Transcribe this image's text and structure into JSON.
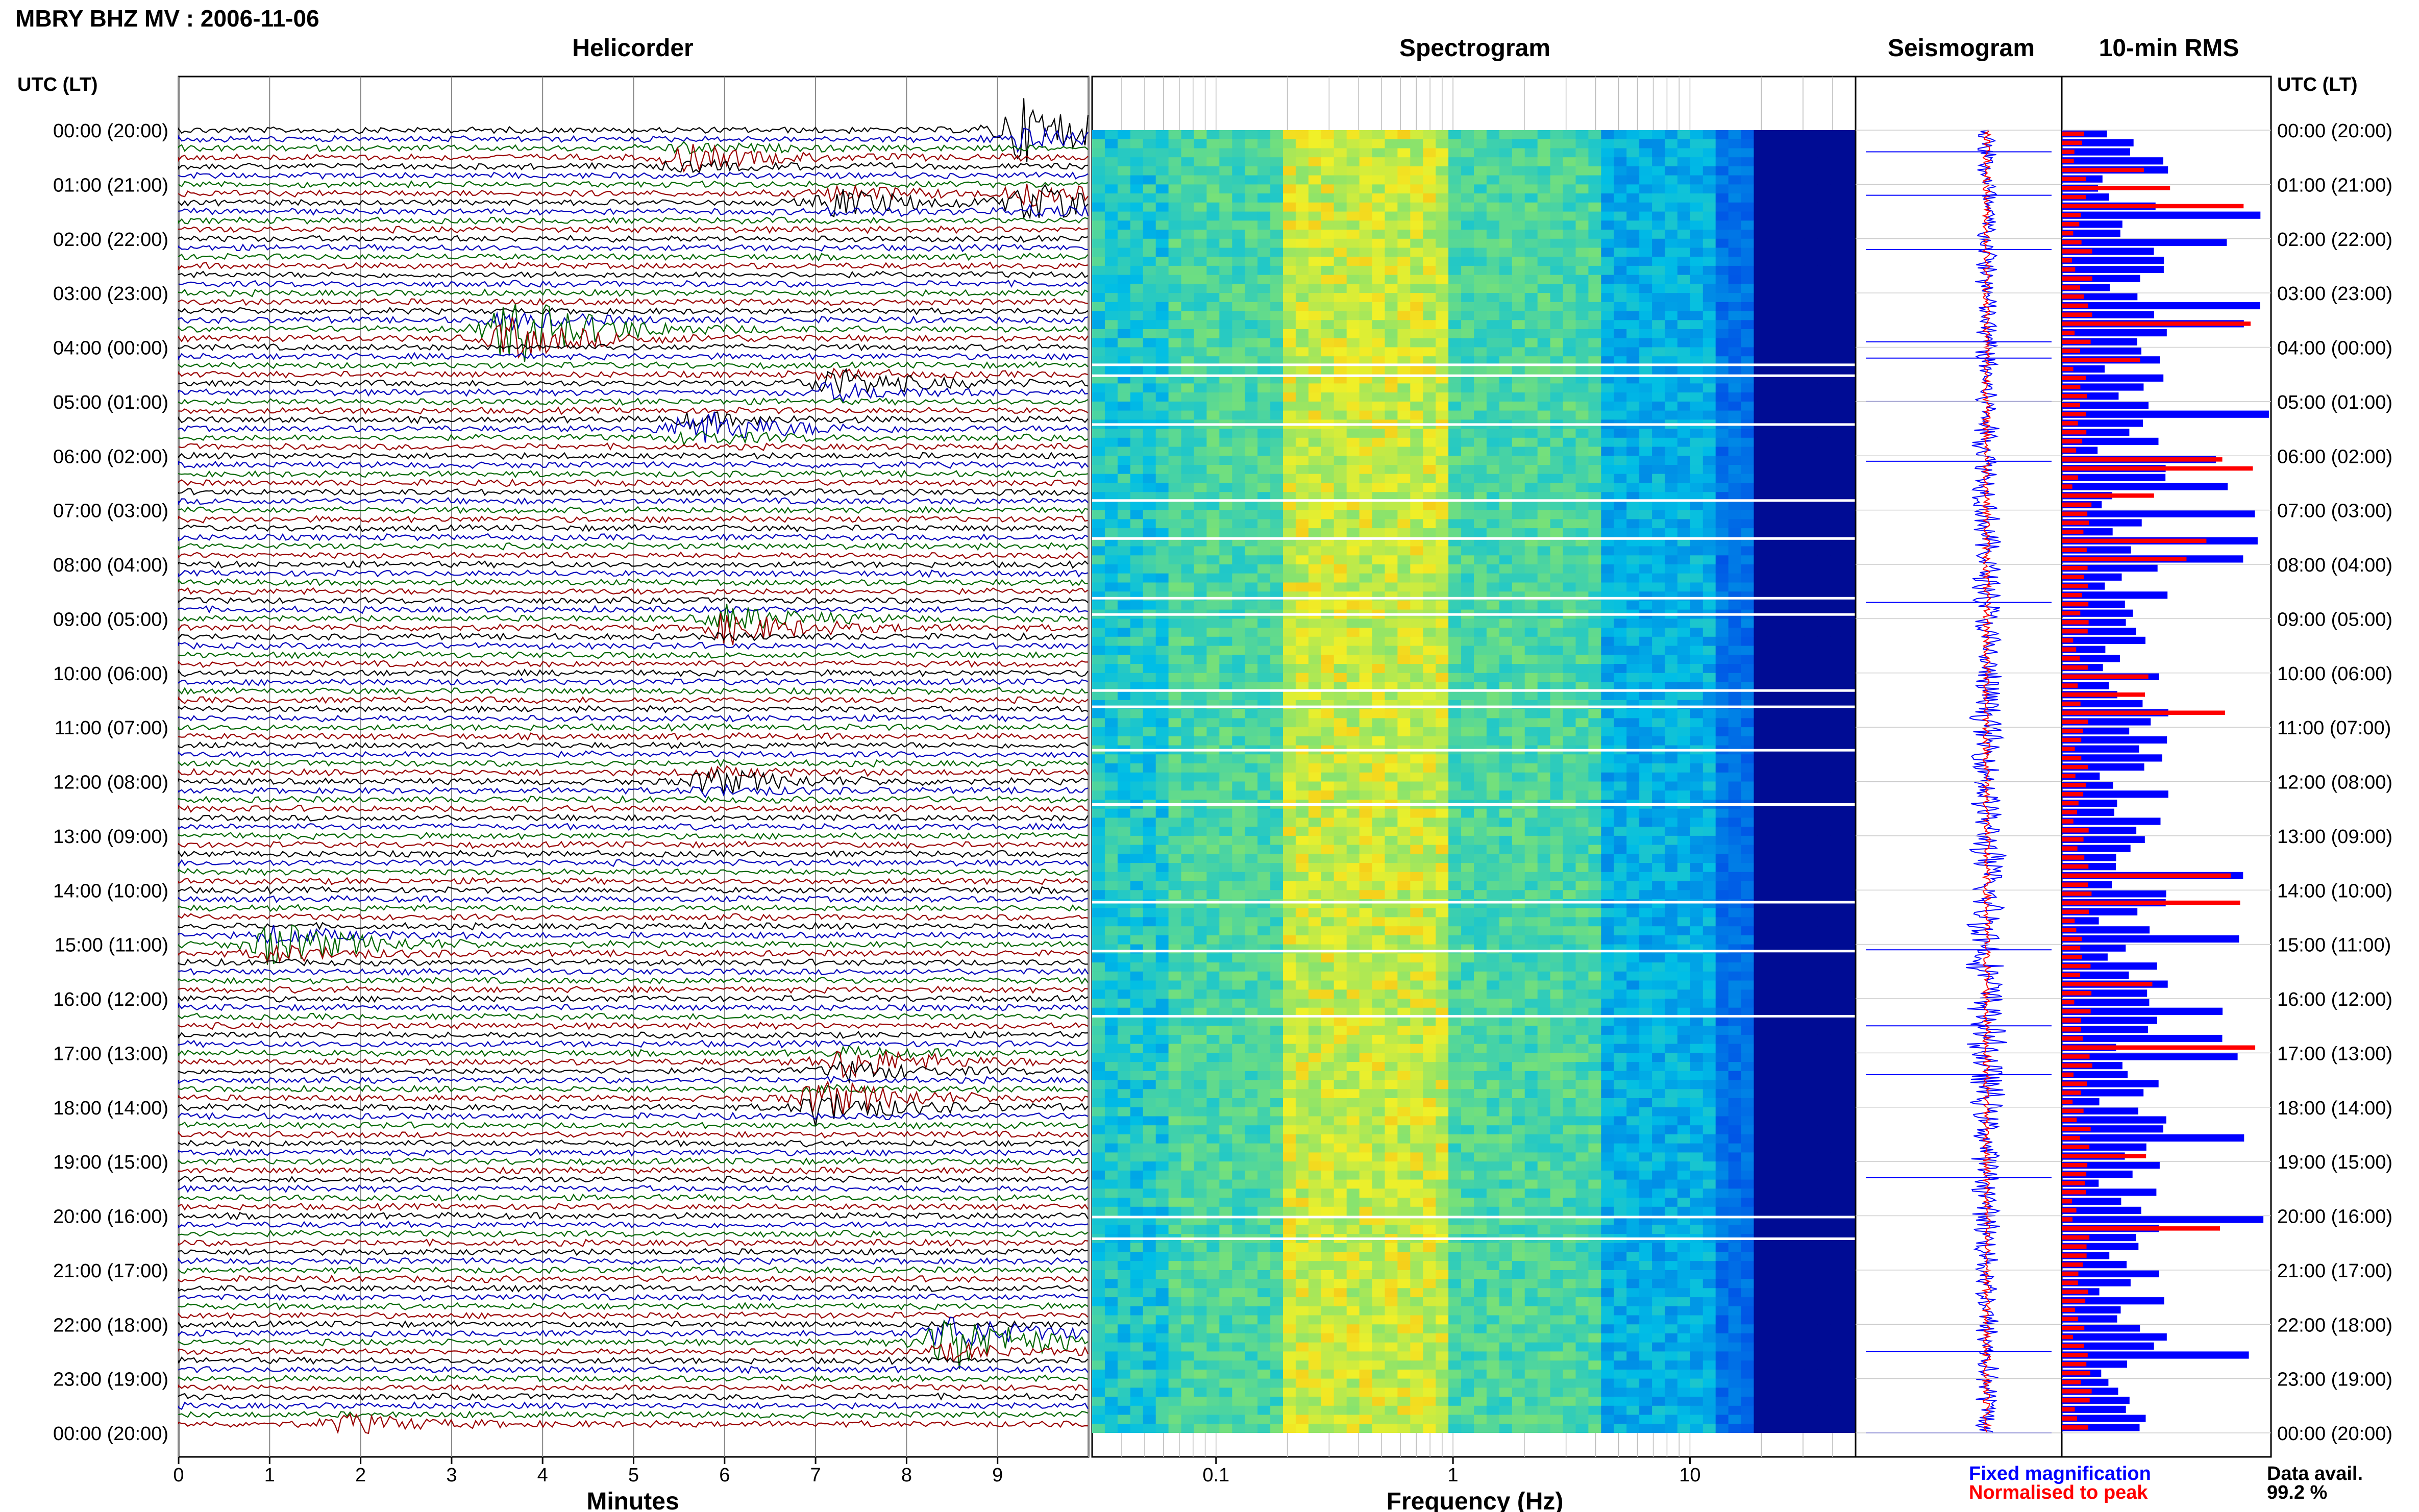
{
  "header": {
    "title": "MBRY BHZ MV : 2006-11-06",
    "utc_label": "UTC (LT)"
  },
  "panels": {
    "helicorder": "Helicorder",
    "spectrogram": "Spectrogram",
    "seismogram": "Seismogram",
    "rms": "10-min RMS"
  },
  "axes": {
    "minutes_label": "Minutes",
    "frequency_label": "Frequency (Hz)",
    "minutes_ticks": [
      "0",
      "1",
      "2",
      "3",
      "4",
      "5",
      "6",
      "7",
      "8",
      "9"
    ],
    "frequency_ticks": [
      "0.1",
      "1",
      "10"
    ]
  },
  "time_labels": [
    "00:00 (20:00)",
    "01:00 (21:00)",
    "02:00 (22:00)",
    "03:00 (23:00)",
    "04:00 (00:00)",
    "05:00 (01:00)",
    "06:00 (02:00)",
    "07:00 (03:00)",
    "08:00 (04:00)",
    "09:00 (05:00)",
    "10:00 (06:00)",
    "11:00 (07:00)",
    "12:00 (08:00)",
    "13:00 (09:00)",
    "14:00 (10:00)",
    "15:00 (11:00)",
    "16:00 (12:00)",
    "17:00 (13:00)",
    "18:00 (14:00)",
    "19:00 (15:00)",
    "20:00 (16:00)",
    "21:00 (17:00)",
    "22:00 (18:00)",
    "23:00 (19:00)",
    "00:00 (20:00)"
  ],
  "legend": {
    "fixed": "Fixed magnification",
    "normalised": "Normalised to peak",
    "data_avail_label": "Data avail.",
    "data_avail_value": "99.2 %"
  },
  "colors": {
    "trace_cycle": [
      "#000000",
      "#0000bb",
      "#006600",
      "#990000"
    ],
    "rms_fixed": "#0000ff",
    "rms_normalised": "#ff0000",
    "spectrogram_low": "#000080",
    "spectrogram_high": "#ffff00"
  },
  "chart_data": [
    {
      "type": "helicorder",
      "title": "Helicorder",
      "xlabel": "Minutes",
      "xlim": [
        0,
        10
      ],
      "rows_per_hour": 6,
      "hours": 24,
      "events": [
        {
          "hour_row": 0.0,
          "minute": 9.2,
          "amp": 3.0,
          "color": "#990000"
        },
        {
          "hour_row": 0.5,
          "minute": 5.5,
          "amp": 1.2,
          "color": "#006600"
        },
        {
          "hour_row": 1.3,
          "minute": 7.2,
          "amp": 1.5,
          "color": "#990000"
        },
        {
          "hour_row": 1.3,
          "minute": 9.3,
          "amp": 2.0,
          "color": "#0000bb"
        },
        {
          "hour_row": 3.7,
          "minute": 3.6,
          "amp": 4.0,
          "color": "#000000"
        },
        {
          "hour_row": 4.7,
          "minute": 7.1,
          "amp": 1.6,
          "color": "#990000"
        },
        {
          "hour_row": 5.5,
          "minute": 5.6,
          "amp": 1.8,
          "color": "#0000bb"
        },
        {
          "hour_row": 9.1,
          "minute": 6.0,
          "amp": 2.0,
          "color": "#990000"
        },
        {
          "hour_row": 12.0,
          "minute": 5.8,
          "amp": 1.2,
          "color": "#0000bb"
        },
        {
          "hour_row": 15.0,
          "minute": 1.0,
          "amp": 2.2,
          "color": "#000000"
        },
        {
          "hour_row": 17.2,
          "minute": 7.3,
          "amp": 1.8,
          "color": "#000000"
        },
        {
          "hour_row": 17.9,
          "minute": 7.0,
          "amp": 2.5,
          "color": "#990000"
        },
        {
          "hour_row": 22.3,
          "minute": 8.4,
          "amp": 3.5,
          "color": "#0000bb"
        },
        {
          "hour_row": 24.0,
          "minute": 1.8,
          "amp": 2.5,
          "color": "#006600"
        }
      ]
    },
    {
      "type": "heatmap",
      "title": "Spectrogram",
      "xlabel": "Frequency (Hz)",
      "x_scale": "log",
      "xlim": [
        0.03,
        50
      ],
      "peak_band_hz": [
        0.2,
        1.0
      ]
    },
    {
      "type": "line",
      "title": "Seismogram",
      "series": [
        {
          "name": "Fixed magnification"
        },
        {
          "name": "Normalised to peak"
        }
      ]
    },
    {
      "type": "bar",
      "title": "10-min RMS",
      "orientation": "horizontal",
      "series": [
        {
          "name": "Fixed magnification"
        },
        {
          "name": "Normalised to peak"
        }
      ]
    }
  ]
}
